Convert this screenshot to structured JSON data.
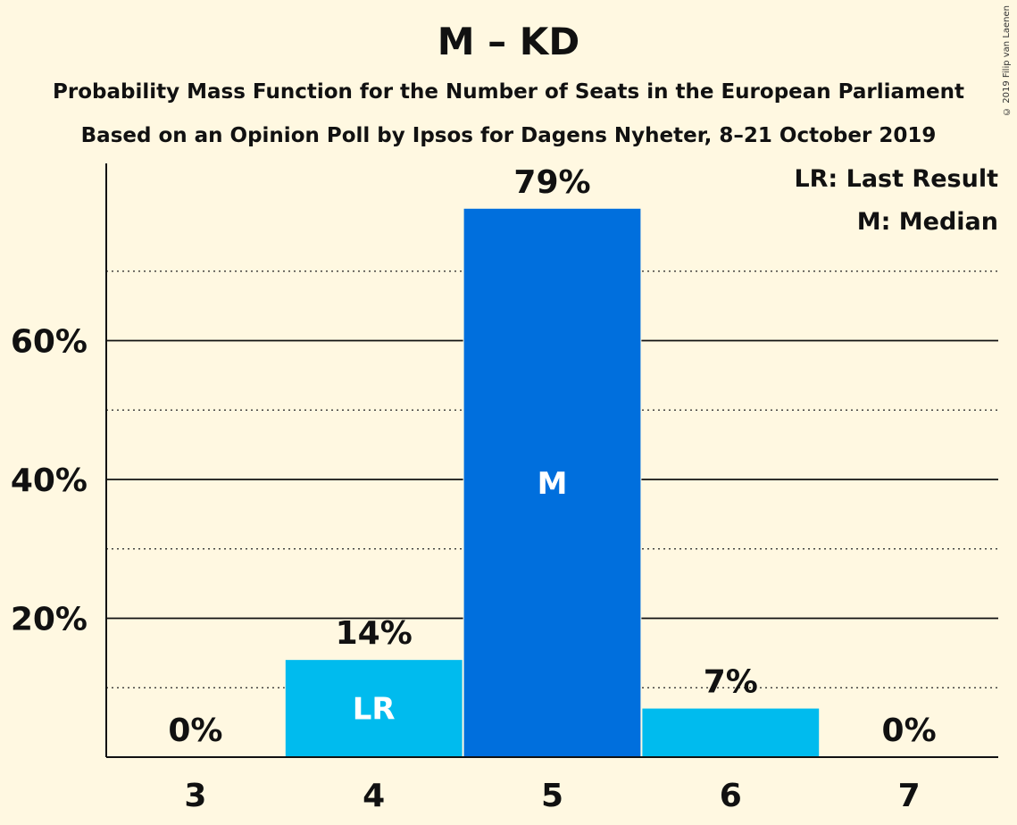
{
  "title": "M – KD",
  "subtitle_1": "Probability Mass Function for the Number of Seats in the European Parliament",
  "subtitle_2": "Based on an Opinion Poll by Ipsos for Dagens Nyheter, 8–21 October 2019",
  "copyright": "© 2019 Filip van Laenen",
  "legend": [
    "LR: Last Result",
    "M: Median"
  ],
  "colors": {
    "background": "#FFF8E1",
    "bar_light": "#00BBEE",
    "bar_median": "#006FDD",
    "text": "#111111"
  },
  "chart_data": {
    "type": "bar",
    "categories": [
      "3",
      "4",
      "5",
      "6",
      "7"
    ],
    "values": [
      0,
      14,
      79,
      7,
      0
    ],
    "value_labels": [
      "0%",
      "14%",
      "79%",
      "7%",
      "0%"
    ],
    "bar_markers": [
      "",
      "LR",
      "M",
      "",
      ""
    ],
    "median_index": 2,
    "ylim": [
      0,
      86
    ],
    "major_ticks": [
      20,
      40,
      60
    ],
    "major_tick_labels": [
      "20%",
      "40%",
      "60%"
    ],
    "minor_ticks": [
      10,
      30,
      50,
      70
    ],
    "grid": true,
    "legend_position": "top-right"
  }
}
